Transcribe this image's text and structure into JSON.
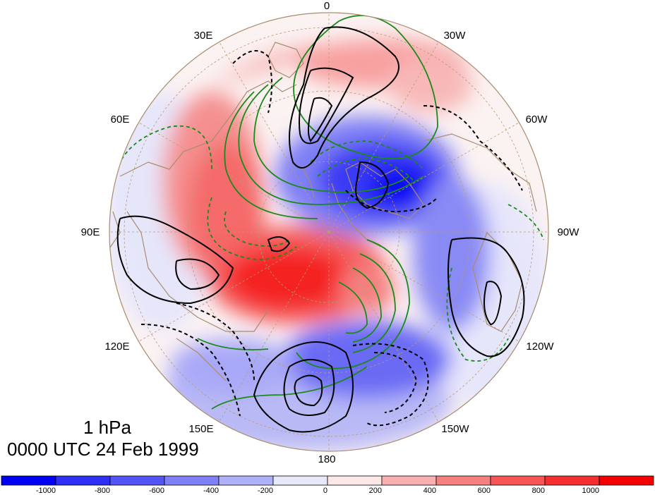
{
  "map": {
    "projection": "polar-stereographic-north",
    "longitude_labels": [
      "0",
      "30W",
      "60W",
      "90W",
      "120W",
      "150W",
      "180",
      "150E",
      "120E",
      "90E",
      "60E",
      "30E"
    ],
    "colors": {
      "land_outline": "#a88c6e",
      "gridline": "#b89b72",
      "contour_positive": "#000000",
      "contour_negative": "#000000",
      "contour_green": "#1a8a1a"
    }
  },
  "level_label": "1 hPa",
  "time_label": "0000 UTC 24 Feb 1999",
  "colorbar": {
    "tick_labels": [
      "-1000",
      "-800",
      "-600",
      "-400",
      "-200",
      "0",
      "200",
      "400",
      "600",
      "800",
      "1000"
    ],
    "colors": [
      "#0000f5",
      "#2f2ff5",
      "#5555f5",
      "#8080f5",
      "#b0b0f8",
      "#e8e8fb",
      "#fde8e8",
      "#f8b0b0",
      "#f58080",
      "#f55555",
      "#f52f2f",
      "#f50000"
    ]
  }
}
